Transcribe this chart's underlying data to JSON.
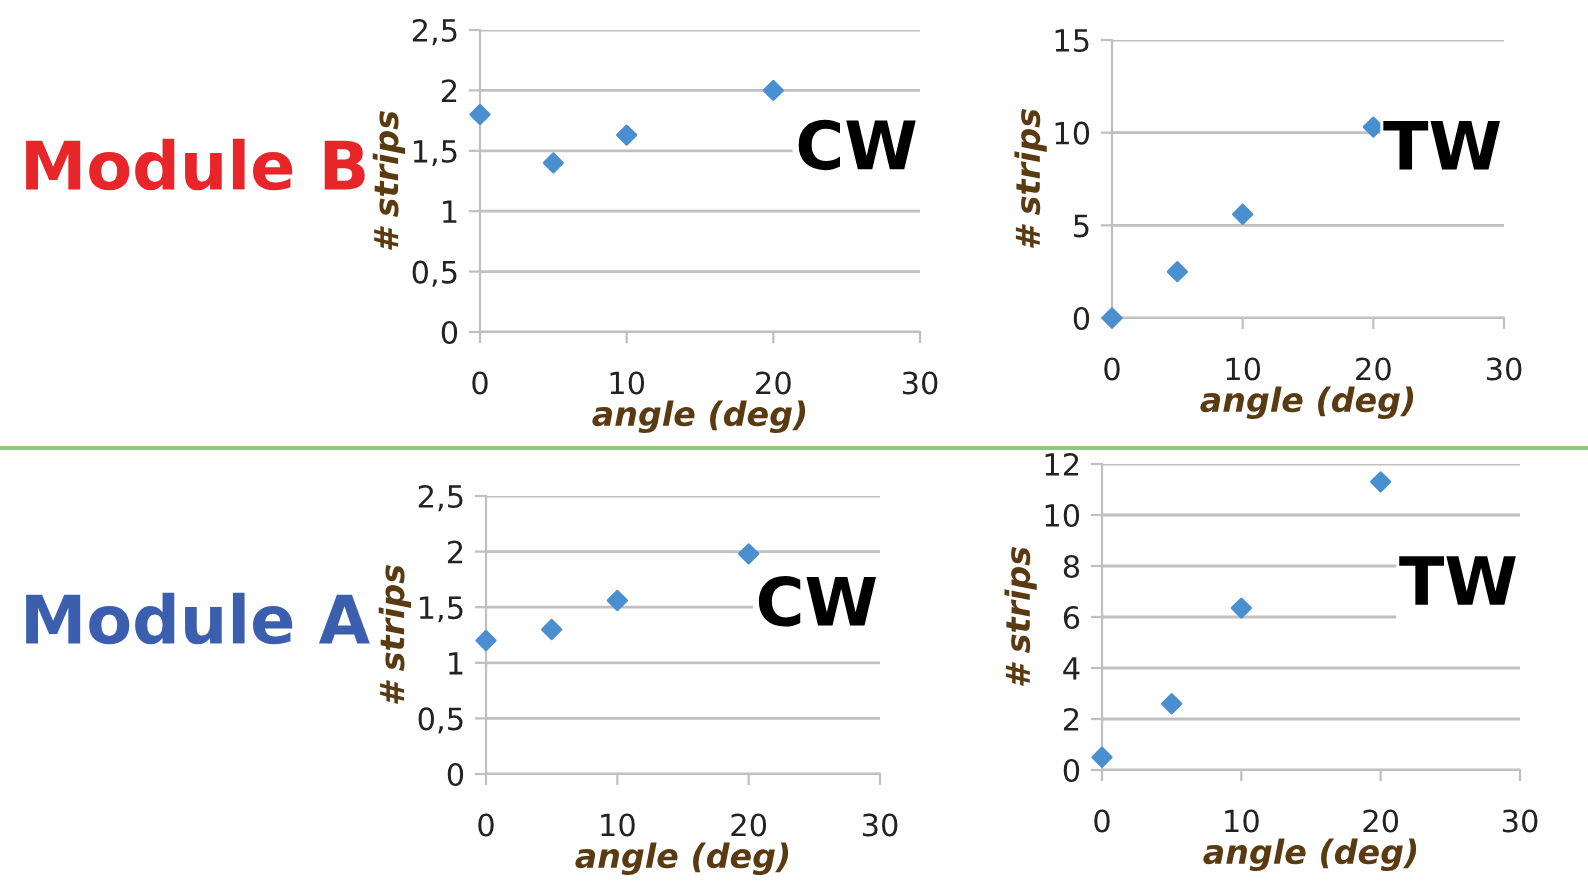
{
  "chart_data": [
    {
      "type": "scatter",
      "title": "Module B",
      "xlabel": "angle (deg)",
      "ylabel": "# strips",
      "annotations": [
        "CW"
      ],
      "x": [
        0,
        5,
        10,
        20
      ],
      "series": [
        {
          "color": "#4a8fd0",
          "values": [
            1.8,
            1.4,
            1.63,
            2.0
          ]
        }
      ],
      "xlim": [
        0,
        30
      ],
      "xticks": [
        0,
        10,
        20,
        30
      ],
      "ylim": [
        0,
        2.5
      ],
      "yticks": [
        0,
        {
          "value": 0.5,
          "label": "0,5"
        },
        1,
        {
          "value": 1.5,
          "label": "1,5"
        },
        2,
        {
          "value": 2.5,
          "label": "2,5"
        }
      ],
      "grid": "y",
      "marker": "diamond",
      "legend": false
    },
    {
      "type": "scatter",
      "xlabel": "angle (deg)",
      "ylabel": "# strips",
      "annotations": [
        "TW"
      ],
      "x": [
        0,
        5,
        10,
        20
      ],
      "series": [
        {
          "color": "#4a8fd0",
          "values": [
            0,
            2.5,
            5.6,
            10.3
          ]
        }
      ],
      "xlim": [
        0,
        30
      ],
      "xticks": [
        0,
        10,
        20,
        30
      ],
      "ylim": [
        0,
        15
      ],
      "yticks": [
        0,
        5,
        10,
        15
      ],
      "grid": "y",
      "marker": "diamond",
      "legend": false
    },
    {
      "type": "scatter",
      "title": "Module A",
      "xlabel": "angle (deg)",
      "ylabel": "# strips",
      "annotations": [
        "CW"
      ],
      "x": [
        0,
        5,
        10,
        20
      ],
      "series": [
        {
          "color": "#4a8fd0",
          "values": [
            1.2,
            1.3,
            1.56,
            1.98
          ]
        }
      ],
      "xlim": [
        0,
        30
      ],
      "xticks": [
        0,
        10,
        20,
        30
      ],
      "ylim": [
        0,
        2.5
      ],
      "yticks": [
        0,
        {
          "value": 0.5,
          "label": "0,5"
        },
        1,
        {
          "value": 1.5,
          "label": "1,5"
        },
        2,
        {
          "value": 2.5,
          "label": "2,5"
        }
      ],
      "grid": "y",
      "marker": "diamond",
      "legend": false
    },
    {
      "type": "scatter",
      "xlabel": "angle (deg)",
      "ylabel": "# strips",
      "annotations": [
        "TW"
      ],
      "x": [
        0,
        5,
        10,
        20
      ],
      "series": [
        {
          "color": "#4a8fd0",
          "values": [
            0.5,
            2.6,
            6.35,
            11.3
          ]
        }
      ],
      "xlim": [
        0,
        30
      ],
      "xticks": [
        0,
        10,
        20,
        30
      ],
      "ylim": [
        0,
        12
      ],
      "yticks": [
        0,
        2,
        4,
        6,
        8,
        10,
        12
      ],
      "grid": "y",
      "marker": "diamond",
      "legend": false
    }
  ]
}
